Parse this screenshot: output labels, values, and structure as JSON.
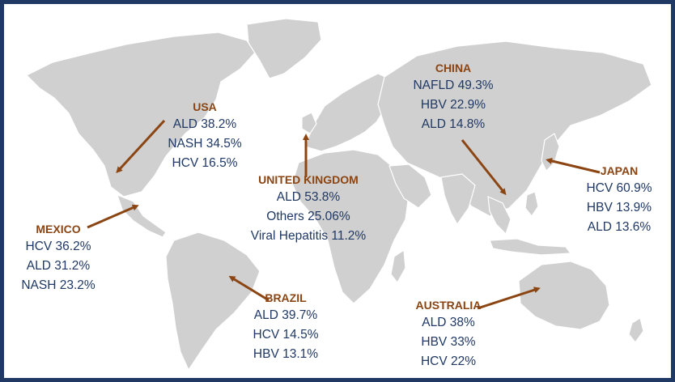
{
  "colors": {
    "land": "#d0d0d0",
    "country_label": "#8b4513",
    "stat_text": "#1f3864",
    "arrow": "#8b4513",
    "border": "#1f3864"
  },
  "regions": {
    "usa": {
      "name": "USA",
      "stats": [
        "ALD 38.2%",
        "NASH 34.5%",
        "HCV 16.5%"
      ]
    },
    "mexico": {
      "name": "MEXICO",
      "stats": [
        "HCV 36.2%",
        "ALD 31.2%",
        "NASH 23.2%"
      ]
    },
    "uk": {
      "name": "UNITED KINGDOM",
      "stats": [
        "ALD 53.8%",
        "Others 25.06%",
        "Viral Hepatitis 11.2%"
      ]
    },
    "china": {
      "name": "CHINA",
      "stats": [
        "NAFLD 49.3%",
        "HBV 22.9%",
        "ALD 14.8%"
      ]
    },
    "japan": {
      "name": "JAPAN",
      "stats": [
        "HCV 60.9%",
        "HBV 13.9%",
        "ALD 13.6%"
      ]
    },
    "brazil": {
      "name": "BRAZIL",
      "stats": [
        "ALD 39.7%",
        "HCV 14.5%",
        "HBV 13.1%"
      ]
    },
    "australia": {
      "name": "AUSTRALIA",
      "stats": [
        "ALD 38%",
        "HBV 33%",
        "HCV 22%"
      ]
    }
  }
}
